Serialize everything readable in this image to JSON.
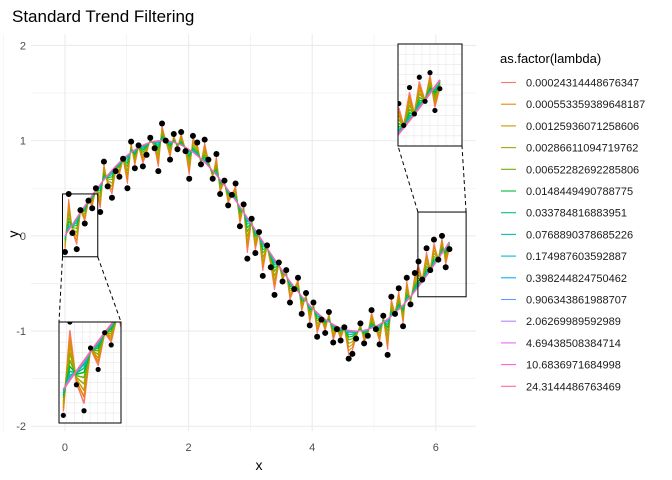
{
  "chart_data": {
    "type": "line",
    "title": "Standard Trend Filtering",
    "xlabel": "x",
    "ylabel": "y",
    "xlim": [
      -0.55,
      6.65
    ],
    "ylim": [
      -2.05,
      2.12
    ],
    "xticks": [
      0,
      2,
      4,
      6
    ],
    "yticks": [
      -2,
      -1,
      0,
      1,
      2
    ],
    "grid": true,
    "legend": {
      "title": "as.factor(lambda)",
      "position": "right"
    },
    "series": [
      {
        "name": "0.00024314448676347",
        "color": "#F8766D",
        "roughness": 1.0
      },
      {
        "name": "0.000553359389648187",
        "color": "#E58700",
        "roughness": 0.85
      },
      {
        "name": "0.00125936071258606",
        "color": "#C99800",
        "roughness": 0.7
      },
      {
        "name": "0.00286611094719762",
        "color": "#A3A500",
        "roughness": 0.55
      },
      {
        "name": "0.00652282692285806",
        "color": "#6BB100",
        "roughness": 0.4
      },
      {
        "name": "0.0148449490788775",
        "color": "#00BA38",
        "roughness": 0.28
      },
      {
        "name": "0.033784816883951",
        "color": "#00BF7D",
        "roughness": 0.18
      },
      {
        "name": "0.0768890378685226",
        "color": "#00C0AF",
        "roughness": 0.1
      },
      {
        "name": "0.174987603592887",
        "color": "#00BCD8",
        "roughness": 0.05
      },
      {
        "name": "0.398244824750462",
        "color": "#00B0F6",
        "roughness": 0.03
      },
      {
        "name": "0.906343861988707",
        "color": "#619CFF",
        "roughness": 0.02
      },
      {
        "name": "2.06269989592989",
        "color": "#B983FF",
        "roughness": 0.01
      },
      {
        "name": "4.69438508384714",
        "color": "#E76BF3",
        "roughness": 0.0
      },
      {
        "name": "10.6836971684998",
        "color": "#FD61D1",
        "roughness": 0.0
      },
      {
        "name": "24.3144486763469",
        "color": "#FF67A4",
        "roughness": 0.0
      }
    ],
    "points": [
      [
        0.0,
        -0.17
      ],
      [
        0.06,
        0.44
      ],
      [
        0.12,
        0.03
      ],
      [
        0.19,
        -0.14
      ],
      [
        0.25,
        0.27
      ],
      [
        0.32,
        0.13
      ],
      [
        0.38,
        0.37
      ],
      [
        0.44,
        0.29
      ],
      [
        0.5,
        0.5
      ],
      [
        0.57,
        0.25
      ],
      [
        0.63,
        0.78
      ],
      [
        0.69,
        0.52
      ],
      [
        0.76,
        0.4
      ],
      [
        0.82,
        0.68
      ],
      [
        0.88,
        0.62
      ],
      [
        0.94,
        0.81
      ],
      [
        1.01,
        0.5
      ],
      [
        1.07,
        0.99
      ],
      [
        1.13,
        0.71
      ],
      [
        1.19,
        0.95
      ],
      [
        1.26,
        0.73
      ],
      [
        1.32,
        0.85
      ],
      [
        1.38,
        1.03
      ],
      [
        1.45,
        0.92
      ],
      [
        1.51,
        0.68
      ],
      [
        1.57,
        1.18
      ],
      [
        1.63,
        1.0
      ],
      [
        1.7,
        0.8
      ],
      [
        1.76,
        1.07
      ],
      [
        1.82,
        0.91
      ],
      [
        1.88,
        1.09
      ],
      [
        1.95,
        0.89
      ],
      [
        2.01,
        0.6
      ],
      [
        2.07,
        1.05
      ],
      [
        2.14,
        0.98
      ],
      [
        2.2,
        0.75
      ],
      [
        2.26,
        1.01
      ],
      [
        2.32,
        0.8
      ],
      [
        2.39,
        0.6
      ],
      [
        2.45,
        0.86
      ],
      [
        2.51,
        0.44
      ],
      [
        2.58,
        0.58
      ],
      [
        2.64,
        0.32
      ],
      [
        2.7,
        0.43
      ],
      [
        2.76,
        0.55
      ],
      [
        2.83,
        0.1
      ],
      [
        2.89,
        0.33
      ],
      [
        2.95,
        -0.24
      ],
      [
        3.02,
        0.18
      ],
      [
        3.08,
        -0.18
      ],
      [
        3.14,
        0.04
      ],
      [
        3.2,
        -0.42
      ],
      [
        3.27,
        -0.1
      ],
      [
        3.33,
        -0.33
      ],
      [
        3.39,
        -0.62
      ],
      [
        3.46,
        -0.28
      ],
      [
        3.52,
        -0.48
      ],
      [
        3.58,
        -0.36
      ],
      [
        3.64,
        -0.7
      ],
      [
        3.71,
        -0.56
      ],
      [
        3.77,
        -0.44
      ],
      [
        3.83,
        -0.82
      ],
      [
        3.9,
        -0.6
      ],
      [
        3.96,
        -0.94
      ],
      [
        4.02,
        -0.7
      ],
      [
        4.08,
        -1.06
      ],
      [
        4.15,
        -0.88
      ],
      [
        4.21,
        -1.02
      ],
      [
        4.27,
        -0.8
      ],
      [
        4.34,
        -1.12
      ],
      [
        4.4,
        -0.98
      ],
      [
        4.46,
        -1.1
      ],
      [
        4.52,
        -0.96
      ],
      [
        4.59,
        -1.29
      ],
      [
        4.65,
        -1.24
      ],
      [
        4.71,
        -1.08
      ],
      [
        4.78,
        -0.92
      ],
      [
        4.84,
        -1.13
      ],
      [
        4.9,
        -1.05
      ],
      [
        4.96,
        -0.78
      ],
      [
        5.03,
        -0.98
      ],
      [
        5.09,
        -1.14
      ],
      [
        5.15,
        -0.84
      ],
      [
        5.22,
        -1.25
      ],
      [
        5.28,
        -0.64
      ],
      [
        5.34,
        -0.82
      ],
      [
        5.4,
        -0.55
      ],
      [
        5.47,
        -0.95
      ],
      [
        5.53,
        -0.44
      ],
      [
        5.59,
        -0.72
      ],
      [
        5.66,
        -0.39
      ],
      [
        5.72,
        -0.27
      ],
      [
        5.78,
        -0.46
      ],
      [
        5.85,
        -0.13
      ],
      [
        5.91,
        -0.36
      ],
      [
        5.97,
        -0.04
      ],
      [
        6.04,
        -0.25
      ],
      [
        6.1,
        0.0
      ],
      [
        6.16,
        -0.33
      ],
      [
        6.22,
        -0.14
      ]
    ]
  }
}
